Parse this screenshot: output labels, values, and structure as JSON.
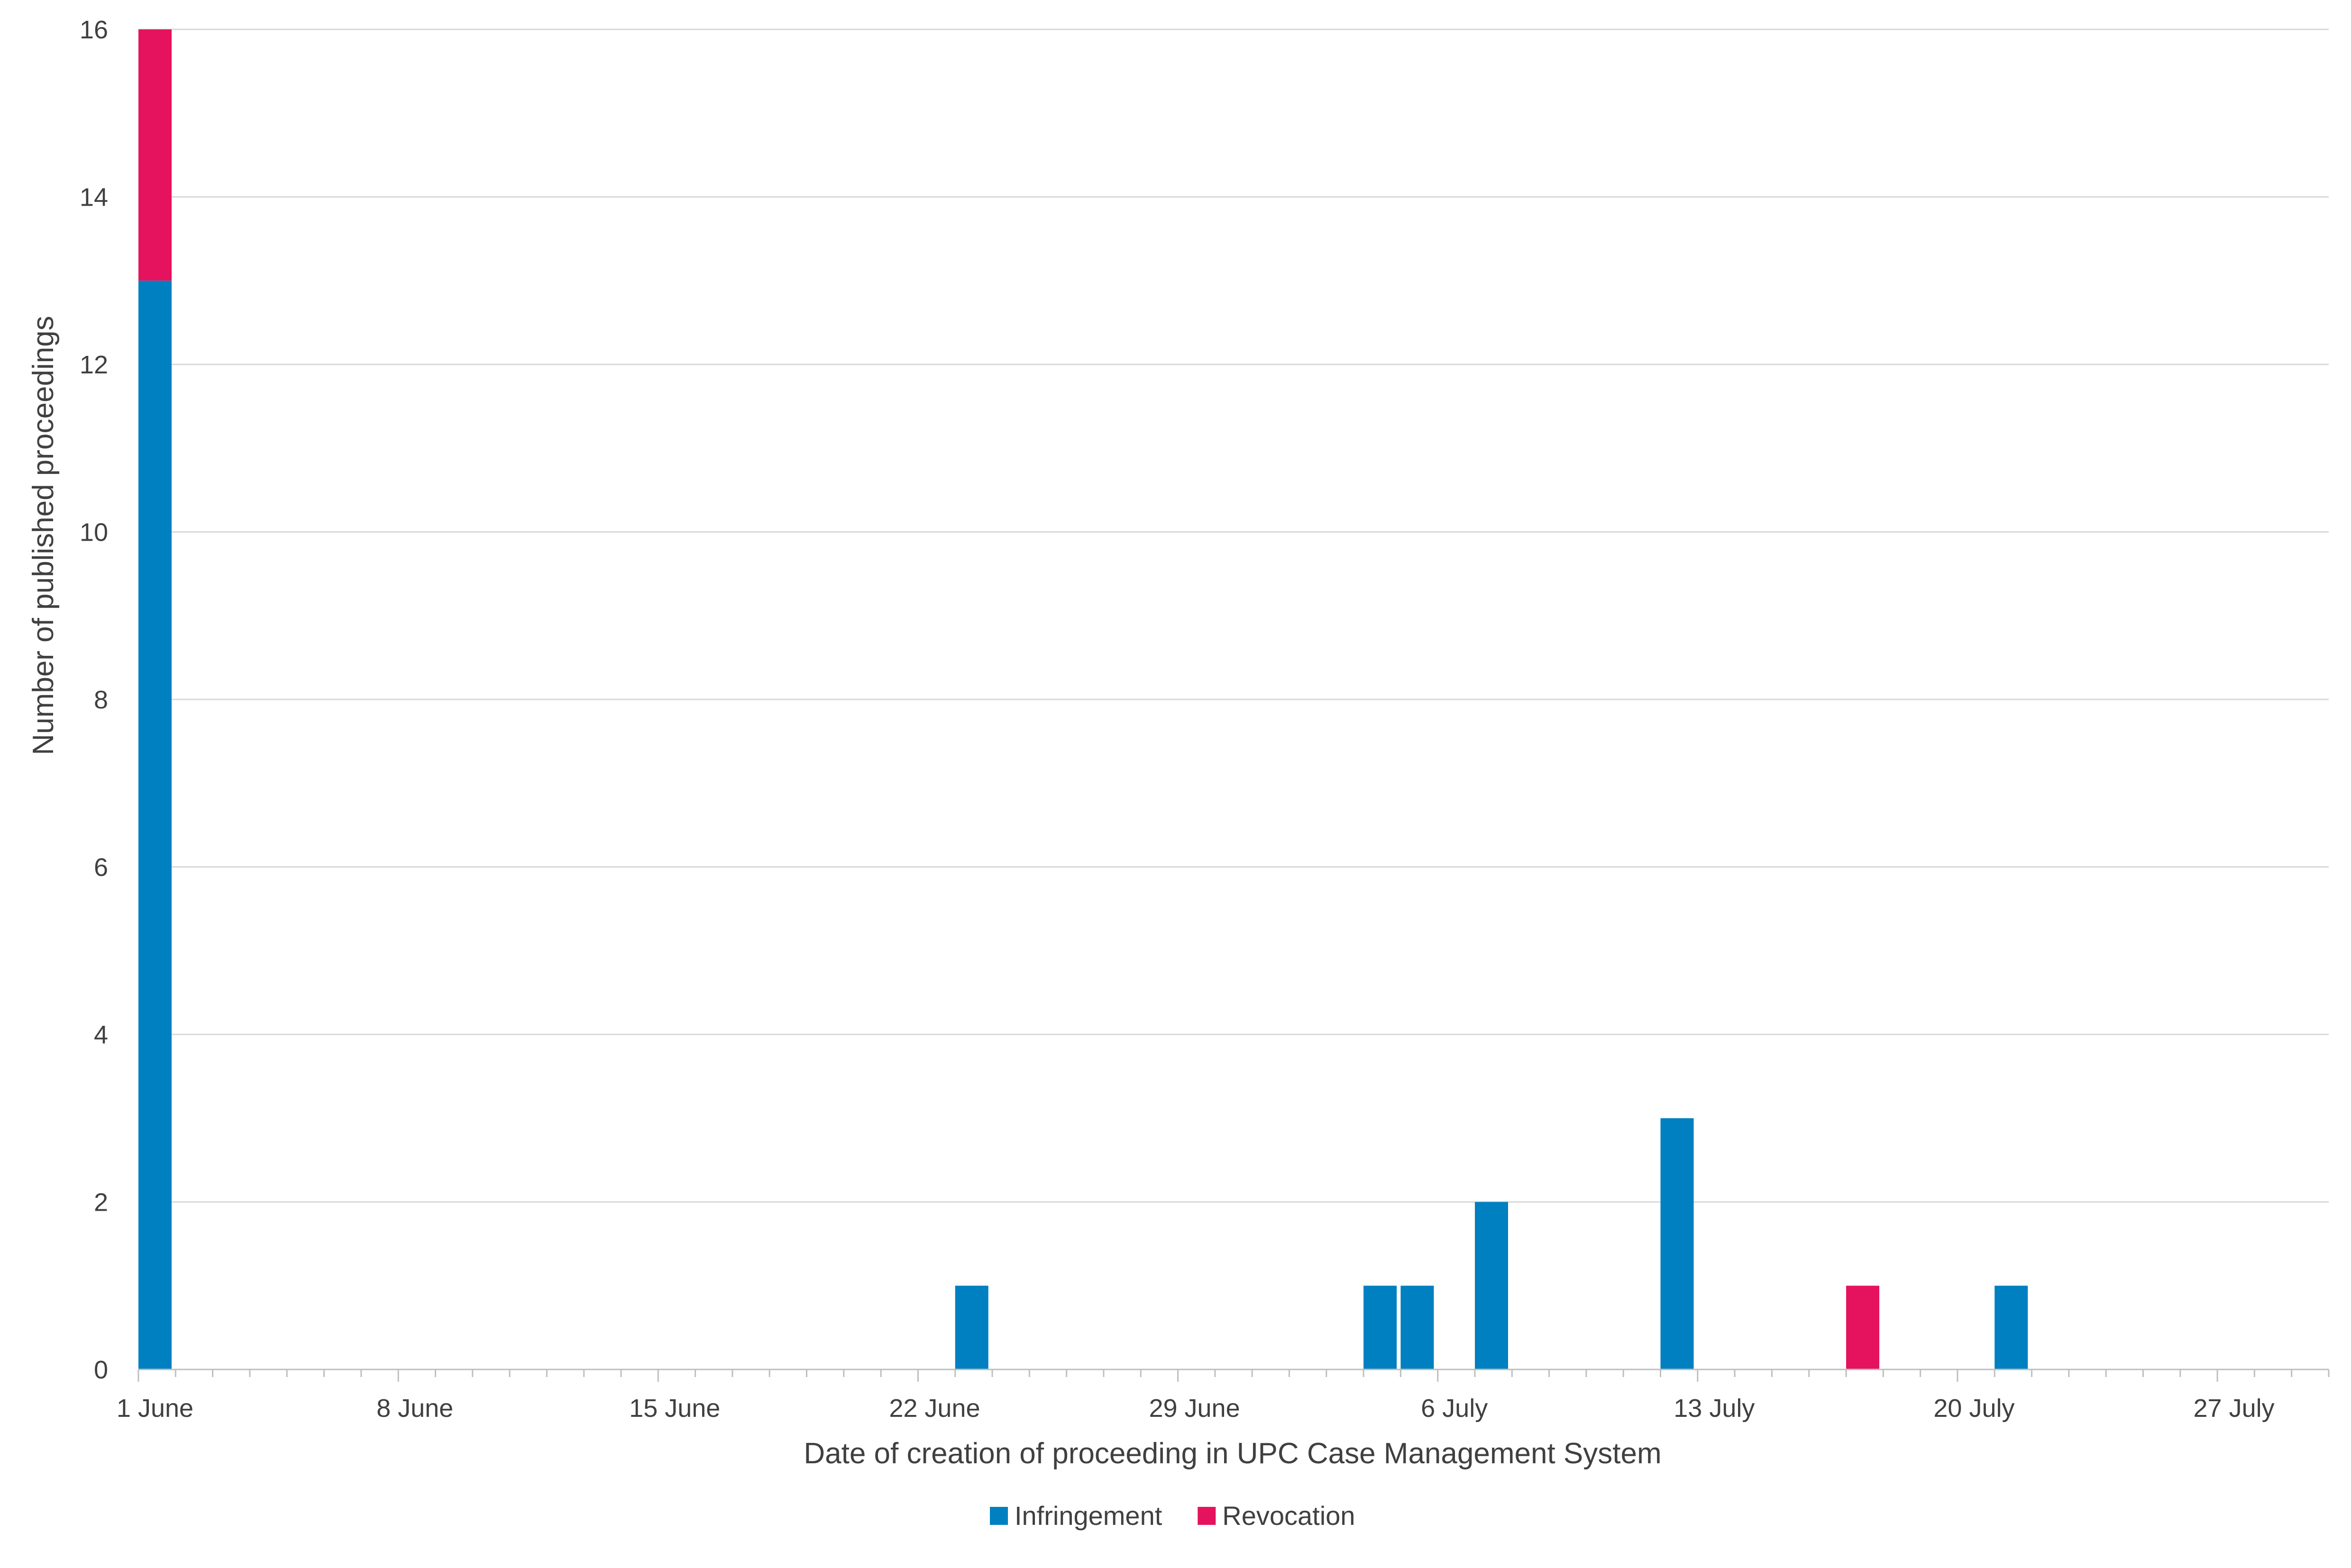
{
  "chart_data": {
    "type": "bar",
    "stacked": true,
    "xlabel": "Date of creation of proceeding in UPC Case Management System",
    "ylabel": "Number of published proceedings",
    "ylim": [
      0,
      16
    ],
    "yticks": [
      0,
      2,
      4,
      6,
      8,
      10,
      12,
      14,
      16
    ],
    "xlim": [
      "2023-06-01",
      "2023-07-30"
    ],
    "xticks": [
      {
        "date": "2023-06-01",
        "label": "1 June"
      },
      {
        "date": "2023-06-08",
        "label": "8 June"
      },
      {
        "date": "2023-06-15",
        "label": "15 June"
      },
      {
        "date": "2023-06-22",
        "label": "22 June"
      },
      {
        "date": "2023-06-29",
        "label": "29 June"
      },
      {
        "date": "2023-07-06",
        "label": "6 July"
      },
      {
        "date": "2023-07-13",
        "label": "13 July"
      },
      {
        "date": "2023-07-20",
        "label": "20 July"
      },
      {
        "date": "2023-07-27",
        "label": "27 July"
      }
    ],
    "grid": true,
    "legend_position": "bottom",
    "series": [
      {
        "name": "Infringement",
        "color": "#0080c0",
        "points": [
          {
            "date": "2023-06-01",
            "value": 13
          },
          {
            "date": "2023-06-23",
            "value": 1
          },
          {
            "date": "2023-07-04",
            "value": 1
          },
          {
            "date": "2023-07-05",
            "value": 1
          },
          {
            "date": "2023-07-07",
            "value": 2
          },
          {
            "date": "2023-07-12",
            "value": 3
          },
          {
            "date": "2023-07-21",
            "value": 1
          }
        ]
      },
      {
        "name": "Revocation",
        "color": "#e5135e",
        "points": [
          {
            "date": "2023-06-01",
            "value": 3
          },
          {
            "date": "2023-07-17",
            "value": 1
          }
        ]
      }
    ]
  }
}
